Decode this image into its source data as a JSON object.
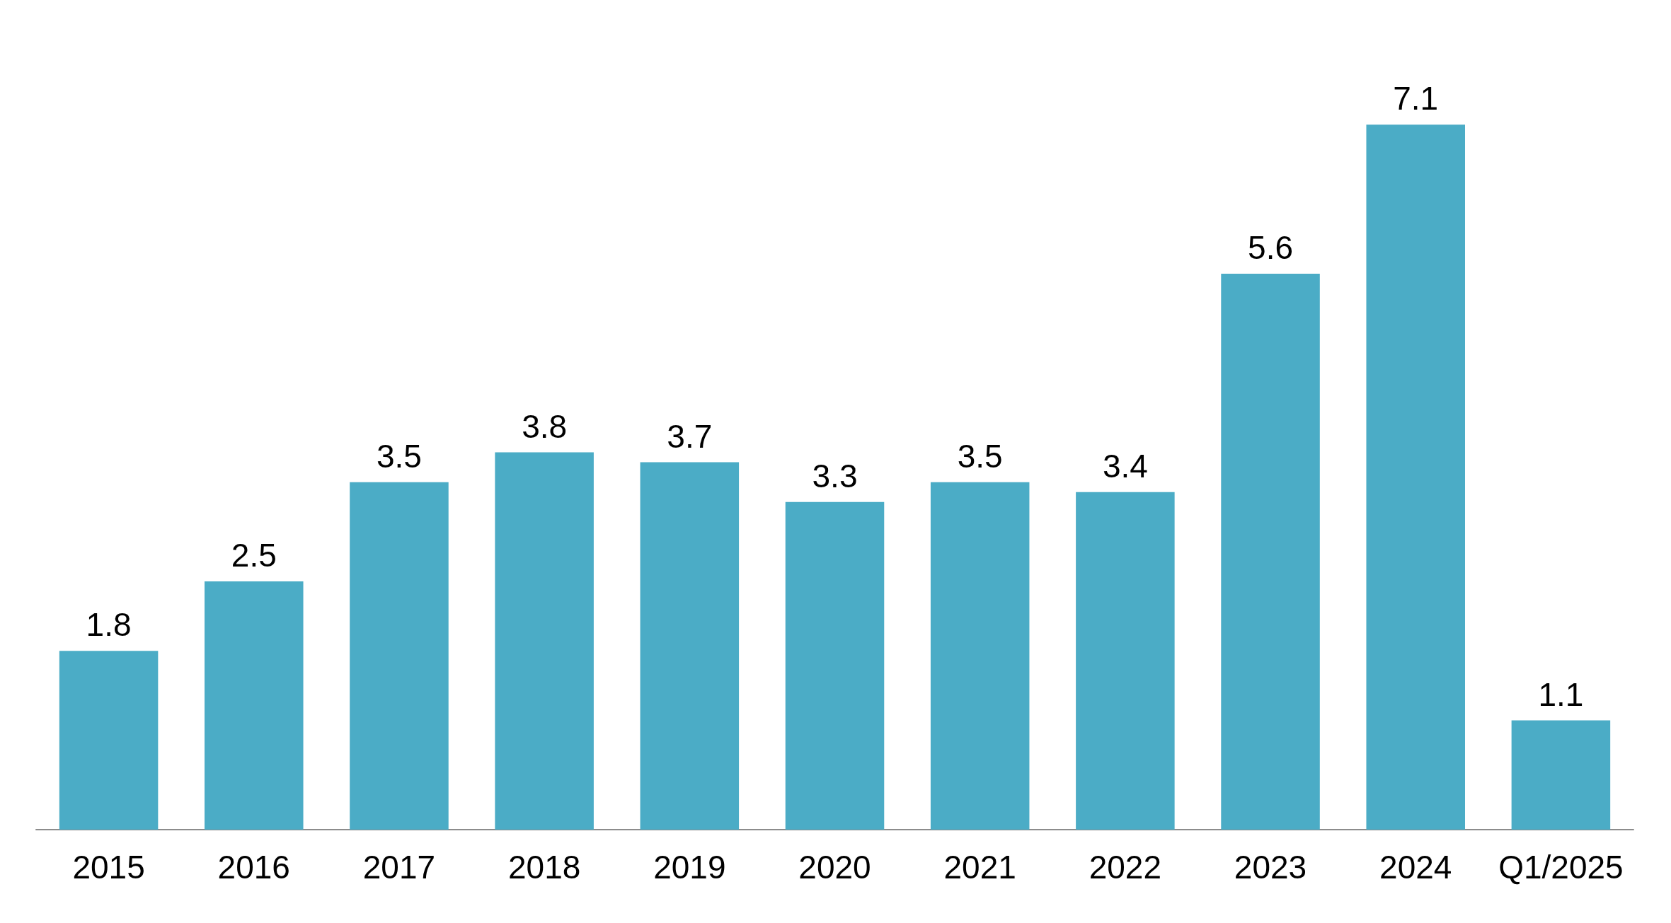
{
  "chart_data": {
    "type": "bar",
    "categories": [
      "2015",
      "2016",
      "2017",
      "2018",
      "2019",
      "2020",
      "2021",
      "2022",
      "2023",
      "2024",
      "Q1/2025"
    ],
    "values": [
      1.8,
      2.5,
      3.5,
      3.8,
      3.7,
      3.3,
      3.5,
      3.4,
      5.6,
      7.1,
      1.1
    ],
    "color": "#4bacc6",
    "data_labels": true
  }
}
